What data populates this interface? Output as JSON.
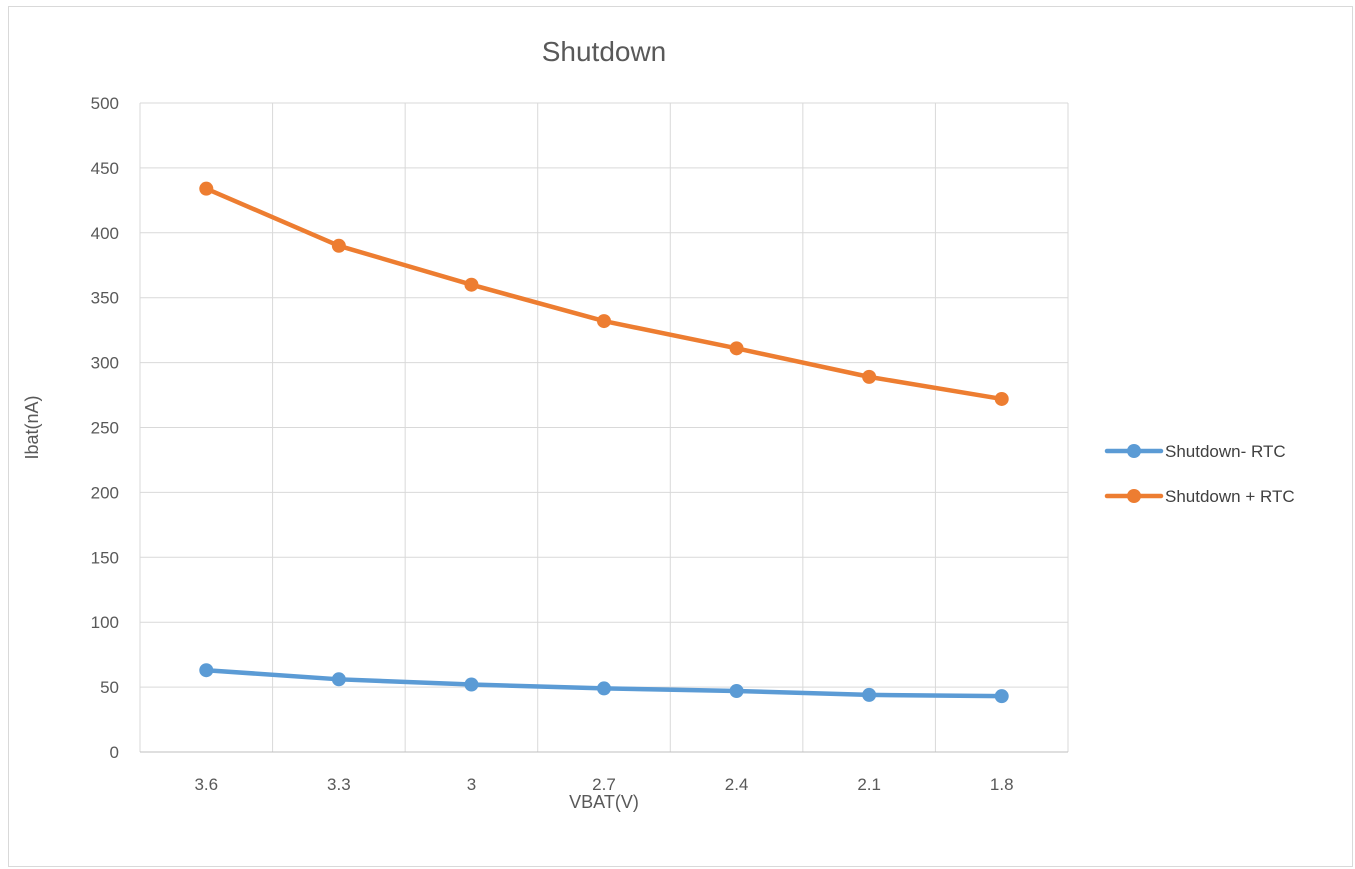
{
  "chart_data": {
    "type": "line",
    "title": "Shutdown",
    "xlabel": "VBAT(V)",
    "ylabel": "Ibat(nA)",
    "categories": [
      "3.6",
      "3.3",
      "3",
      "2.7",
      "2.4",
      "2.1",
      "1.8"
    ],
    "ylim": [
      0,
      500
    ],
    "yticks": [
      "0",
      "50",
      "100",
      "150",
      "200",
      "250",
      "300",
      "350",
      "400",
      "450",
      "500"
    ],
    "grid": true,
    "legend_position": "right",
    "series": [
      {
        "name": "Shutdown- RTC",
        "color": "#5B9BD5",
        "values": [
          63,
          56,
          52,
          49,
          47,
          44,
          43
        ]
      },
      {
        "name": "Shutdown + RTC",
        "color": "#ED7D31",
        "values": [
          434,
          390,
          360,
          332,
          311,
          289,
          272
        ]
      }
    ]
  }
}
